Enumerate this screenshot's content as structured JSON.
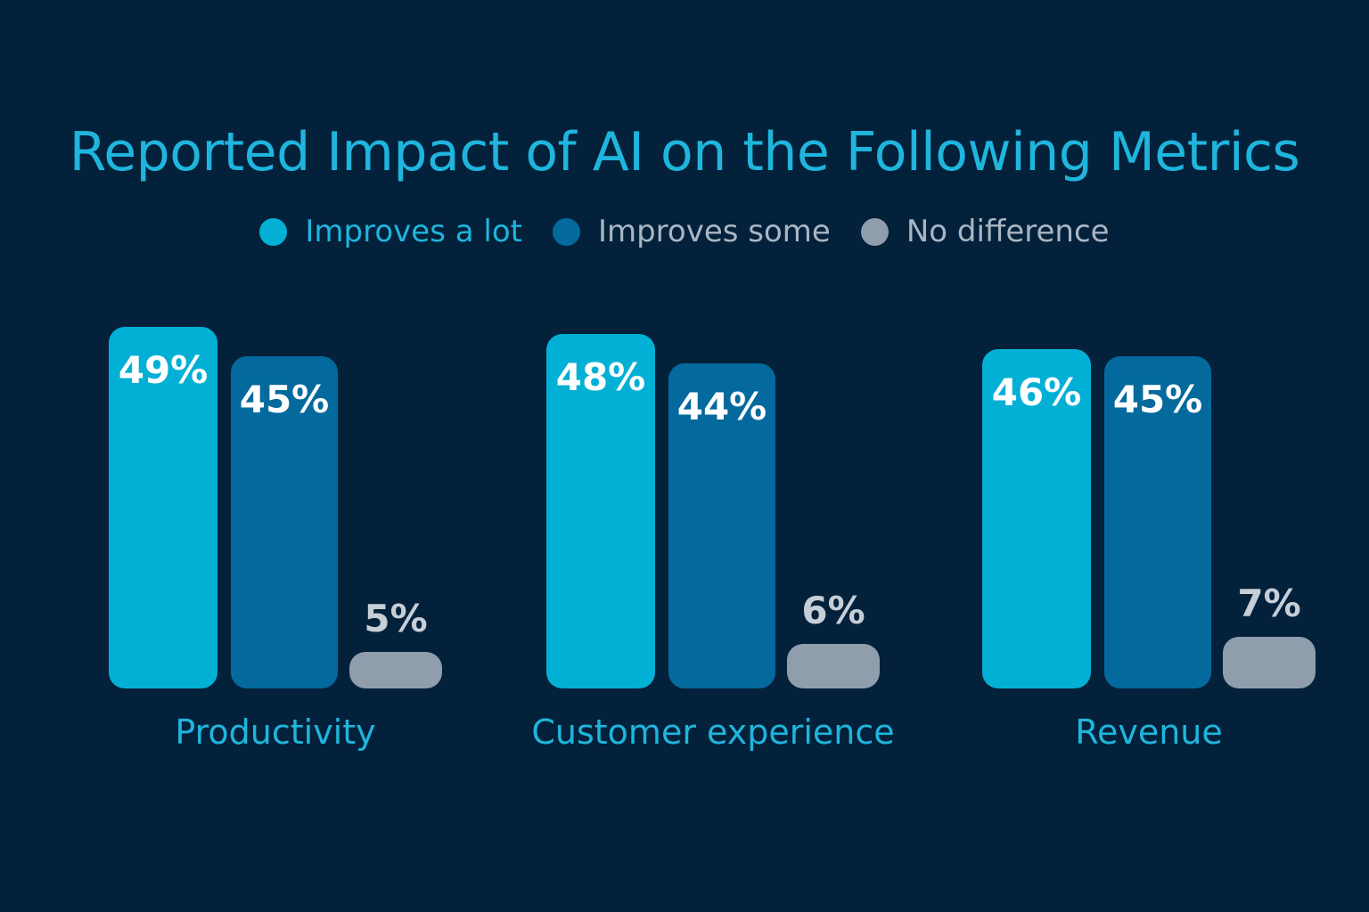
{
  "chart_data": {
    "type": "bar",
    "title": "Reported Impact of AI on the Following Metrics",
    "categories": [
      "Productivity",
      "Customer experience",
      "Revenue"
    ],
    "series": [
      {
        "name": "Improves a lot",
        "values": [
          49,
          48,
          46
        ],
        "labels": [
          "49%",
          "48%",
          "46%"
        ]
      },
      {
        "name": "Improves some",
        "values": [
          45,
          44,
          45
        ],
        "labels": [
          "45%",
          "44%",
          "45%"
        ]
      },
      {
        "name": "No difference",
        "values": [
          5,
          6,
          7
        ],
        "labels": [
          "5%",
          "6%",
          "7%"
        ]
      }
    ],
    "unit": "%",
    "legend_position": "top-center",
    "grid": false
  },
  "colors": {
    "background": "#03213a",
    "title": "#1fb5dd",
    "category_label": "#1fb5dd",
    "series": [
      "#03b0d5",
      "#046a9d",
      "#8f9dad"
    ],
    "legend_text": [
      "#1fb5dd",
      "#a9b6c3",
      "#a9b6c3"
    ],
    "value_label": [
      "#ffffff",
      "#ffffff",
      "#c6ced7"
    ]
  }
}
